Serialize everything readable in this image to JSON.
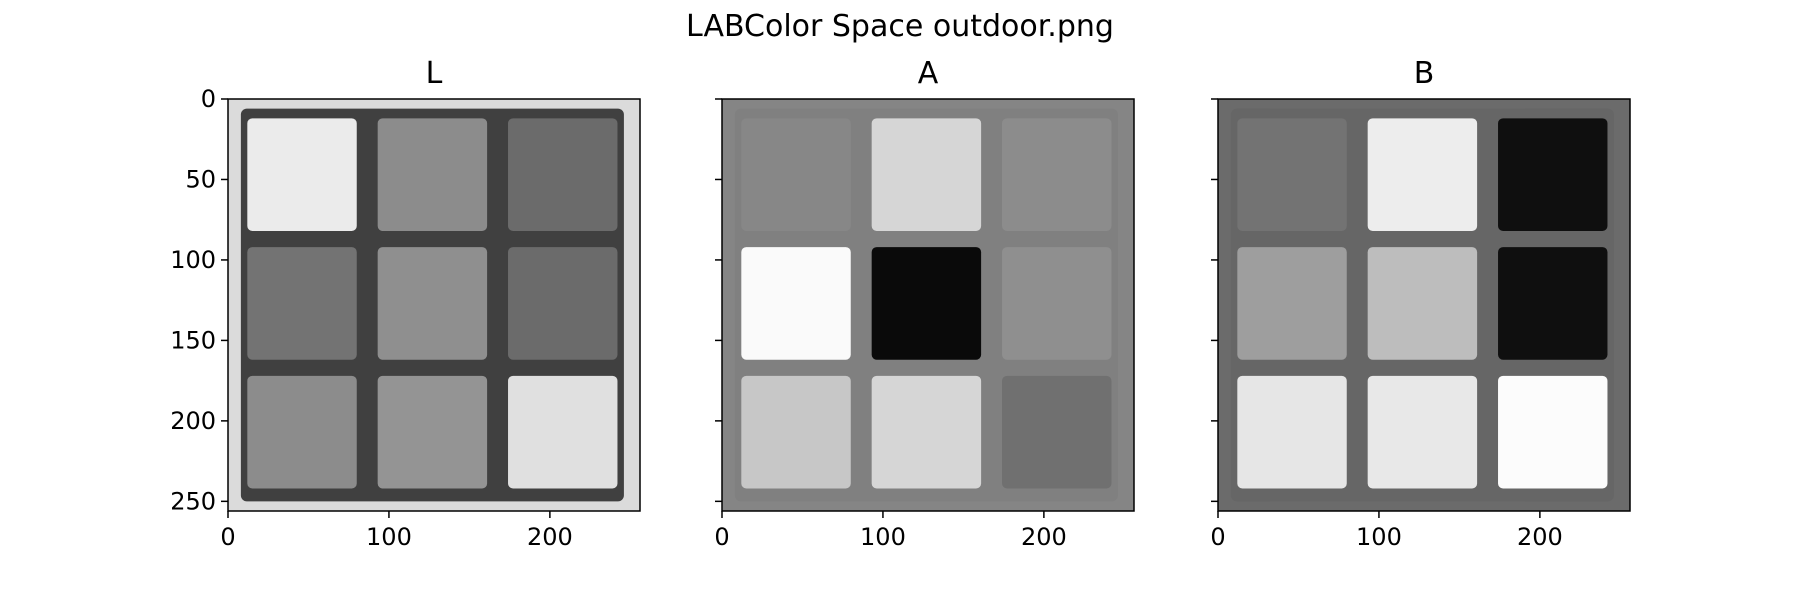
{
  "figure": {
    "title": "LABColor Space outdoor.png"
  },
  "chart_data": [
    {
      "type": "heatmap",
      "title": "L",
      "colormap": "gray",
      "image_size": [
        256,
        256
      ],
      "xlim": [
        0,
        256
      ],
      "ylim": [
        256,
        0
      ],
      "xticks": [
        0,
        100,
        200
      ],
      "yticks": [
        0,
        50,
        100,
        150,
        200,
        250
      ],
      "ytick_labels_shown": true,
      "background_gray": 0.86,
      "frame_gray": 0.25,
      "stickers": [
        {
          "row": 0,
          "col": 0,
          "gray": 0.92
        },
        {
          "row": 0,
          "col": 1,
          "gray": 0.55
        },
        {
          "row": 0,
          "col": 2,
          "gray": 0.42
        },
        {
          "row": 1,
          "col": 0,
          "gray": 0.45
        },
        {
          "row": 1,
          "col": 1,
          "gray": 0.56
        },
        {
          "row": 1,
          "col": 2,
          "gray": 0.42
        },
        {
          "row": 2,
          "col": 0,
          "gray": 0.55
        },
        {
          "row": 2,
          "col": 1,
          "gray": 0.58
        },
        {
          "row": 2,
          "col": 2,
          "gray": 0.88
        }
      ]
    },
    {
      "type": "heatmap",
      "title": "A",
      "colormap": "gray",
      "image_size": [
        256,
        256
      ],
      "xlim": [
        0,
        256
      ],
      "ylim": [
        256,
        0
      ],
      "xticks": [
        0,
        100,
        200
      ],
      "yticks": [
        0,
        50,
        100,
        150,
        200,
        250
      ],
      "ytick_labels_shown": false,
      "background_gray": 0.52,
      "frame_gray": 0.5,
      "stickers": [
        {
          "row": 0,
          "col": 0,
          "gray": 0.53
        },
        {
          "row": 0,
          "col": 1,
          "gray": 0.84
        },
        {
          "row": 0,
          "col": 2,
          "gray": 0.55
        },
        {
          "row": 1,
          "col": 0,
          "gray": 0.98
        },
        {
          "row": 1,
          "col": 1,
          "gray": 0.04
        },
        {
          "row": 1,
          "col": 2,
          "gray": 0.56
        },
        {
          "row": 2,
          "col": 0,
          "gray": 0.78
        },
        {
          "row": 2,
          "col": 1,
          "gray": 0.84
        },
        {
          "row": 2,
          "col": 2,
          "gray": 0.44
        }
      ]
    },
    {
      "type": "heatmap",
      "title": "B",
      "colormap": "gray",
      "image_size": [
        256,
        256
      ],
      "xlim": [
        0,
        256
      ],
      "ylim": [
        256,
        0
      ],
      "xticks": [
        0,
        100,
        200
      ],
      "yticks": [
        0,
        50,
        100,
        150,
        200,
        250
      ],
      "ytick_labels_shown": false,
      "background_gray": 0.42,
      "frame_gray": 0.4,
      "stickers": [
        {
          "row": 0,
          "col": 0,
          "gray": 0.45
        },
        {
          "row": 0,
          "col": 1,
          "gray": 0.93
        },
        {
          "row": 0,
          "col": 2,
          "gray": 0.06
        },
        {
          "row": 1,
          "col": 0,
          "gray": 0.62
        },
        {
          "row": 1,
          "col": 1,
          "gray": 0.74
        },
        {
          "row": 1,
          "col": 2,
          "gray": 0.06
        },
        {
          "row": 2,
          "col": 0,
          "gray": 0.9
        },
        {
          "row": 2,
          "col": 1,
          "gray": 0.91
        },
        {
          "row": 2,
          "col": 2,
          "gray": 0.99
        }
      ]
    }
  ]
}
